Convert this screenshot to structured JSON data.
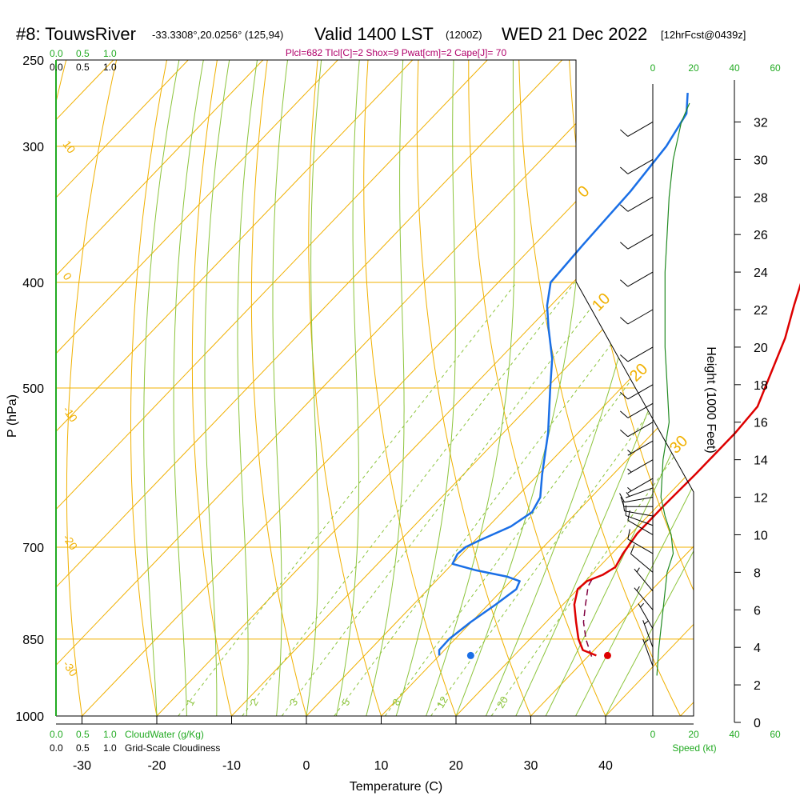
{
  "header": {
    "station": "#8: TouwsRiver",
    "coords": "-33.3308°,20.0256° (125,94)",
    "valid": "Valid 1400 LST",
    "utc": "(1200Z)",
    "date": "WED 21 Dec 2022",
    "forecast": "[12hrFcst@0439z]",
    "params": "Plcl=682 Tlcl[C]=2 Shox=9 Pwat[cm]=2 Cape[J]= 70"
  },
  "labels": {
    "cloudwater_scale": [
      "0.0",
      "0.5",
      "1.0"
    ],
    "cloudiness_scale": [
      "0.0",
      "0.5",
      "1.0"
    ],
    "cloudwater_label": "CloudWater (g/Kg)",
    "cloudiness_label": "Grid-Scale Cloudiness",
    "speed_label": "Speed (kt)",
    "speed_ticks_top": [
      "0",
      "20",
      "40",
      "60"
    ],
    "speed_ticks_bottom": [
      "0",
      "20",
      "40",
      "60"
    ]
  },
  "chart_data": {
    "type": "skew-t",
    "xlabel": "Temperature (C)",
    "ylabel": "P (hPa)",
    "y2label": "Height (1000 Feet)",
    "x_ticks": [
      -30,
      -20,
      -10,
      0,
      10,
      20,
      30,
      40
    ],
    "p_ticks": [
      250,
      300,
      400,
      500,
      700,
      850,
      1000
    ],
    "height_ticks": [
      0,
      2,
      4,
      6,
      8,
      10,
      12,
      14,
      16,
      18,
      20,
      22,
      24,
      26,
      28,
      30,
      32
    ],
    "dry_adiabat_labels": [
      "-10",
      "0",
      "10",
      "20",
      "30"
    ],
    "isotherm_labels": [
      "10",
      "0",
      "-10",
      "-20",
      "-30"
    ],
    "mixing_ratio_labels": [
      "1",
      "2",
      "3",
      "5",
      "8",
      "12",
      "20"
    ],
    "temperature": [
      {
        "p": 880,
        "t": 31.0
      },
      {
        "p": 870,
        "t": 28.5
      },
      {
        "p": 850,
        "t": 26.5
      },
      {
        "p": 820,
        "t": 24.0
      },
      {
        "p": 790,
        "t": 21.5
      },
      {
        "p": 765,
        "t": 20.0
      },
      {
        "p": 752,
        "t": 20.2
      },
      {
        "p": 742,
        "t": 21.5
      },
      {
        "p": 730,
        "t": 22.2
      },
      {
        "p": 710,
        "t": 21.5
      },
      {
        "p": 680,
        "t": 20.8
      },
      {
        "p": 640,
        "t": 20.8
      },
      {
        "p": 600,
        "t": 21.0
      },
      {
        "p": 550,
        "t": 21.0
      },
      {
        "p": 520,
        "t": 20.6
      },
      {
        "p": 490,
        "t": 18.5
      },
      {
        "p": 450,
        "t": 15.5
      },
      {
        "p": 420,
        "t": 12.5
      },
      {
        "p": 400,
        "t": 10.5
      },
      {
        "p": 370,
        "t": 6.5
      },
      {
        "p": 340,
        "t": 2.5
      },
      {
        "p": 310,
        "t": -2.0
      },
      {
        "p": 290,
        "t": -5.5
      },
      {
        "p": 268,
        "t": -10.5
      }
    ],
    "dewpoint": [
      {
        "p": 880,
        "t": 10.0
      },
      {
        "p": 870,
        "t": 9.3
      },
      {
        "p": 850,
        "t": 9.2
      },
      {
        "p": 820,
        "t": 9.9
      },
      {
        "p": 790,
        "t": 11.0
      },
      {
        "p": 765,
        "t": 11.8
      },
      {
        "p": 752,
        "t": 11.2
      },
      {
        "p": 745,
        "t": 9.0
      },
      {
        "p": 735,
        "t": 4.0
      },
      {
        "p": 725,
        "t": 0.0
      },
      {
        "p": 710,
        "t": -0.6
      },
      {
        "p": 700,
        "t": -0.4
      },
      {
        "p": 690,
        "t": 0.6
      },
      {
        "p": 670,
        "t": 3.0
      },
      {
        "p": 650,
        "t": 4.0
      },
      {
        "p": 630,
        "t": 3.2
      },
      {
        "p": 600,
        "t": 0.5
      },
      {
        "p": 550,
        "t": -4.0
      },
      {
        "p": 500,
        "t": -9.5
      },
      {
        "p": 470,
        "t": -13.0
      },
      {
        "p": 440,
        "t": -17.5
      },
      {
        "p": 420,
        "t": -20.5
      },
      {
        "p": 400,
        "t": -23.0
      },
      {
        "p": 370,
        "t": -23.5
      },
      {
        "p": 330,
        "t": -24.0
      },
      {
        "p": 300,
        "t": -25.0
      },
      {
        "p": 280,
        "t": -26.5
      },
      {
        "p": 268,
        "t": -29.0
      }
    ],
    "parcel": [
      {
        "p": 882,
        "t": 30.5
      },
      {
        "p": 850,
        "t": 27.5
      },
      {
        "p": 820,
        "t": 25.0
      },
      {
        "p": 790,
        "t": 23.0
      },
      {
        "p": 760,
        "t": 21.0
      },
      {
        "p": 745,
        "t": 20.5
      }
    ],
    "surface_temperature": {
      "p": 880,
      "t": 32.5
    },
    "surface_dewpoint": {
      "p": 880,
      "t": 14.2
    },
    "cloud_water_profile": [
      {
        "p": 258,
        "v": 0.0
      },
      {
        "p": 1000,
        "v": 0.0
      }
    ],
    "wind_speed_profile_kt": [
      {
        "h": 2.5,
        "s": 2
      },
      {
        "h": 4,
        "s": 3
      },
      {
        "h": 6,
        "s": 5
      },
      {
        "h": 8,
        "s": 7
      },
      {
        "h": 9,
        "s": 10
      },
      {
        "h": 10,
        "s": 9
      },
      {
        "h": 11,
        "s": 6
      },
      {
        "h": 12,
        "s": 4
      },
      {
        "h": 14,
        "s": 5
      },
      {
        "h": 16,
        "s": 8
      },
      {
        "h": 18,
        "s": 7
      },
      {
        "h": 20,
        "s": 6
      },
      {
        "h": 22,
        "s": 6
      },
      {
        "h": 24,
        "s": 6
      },
      {
        "h": 26,
        "s": 7
      },
      {
        "h": 28,
        "s": 8
      },
      {
        "h": 30,
        "s": 10
      },
      {
        "h": 32,
        "s": 14
      },
      {
        "h": 33,
        "s": 18
      }
    ],
    "wind_barbs": [
      {
        "h": 3,
        "dir": 200,
        "spd": 5
      },
      {
        "h": 4,
        "dir": 200,
        "spd": 5
      },
      {
        "h": 5,
        "dir": 210,
        "spd": 5
      },
      {
        "h": 6,
        "dir": 220,
        "spd": 5
      },
      {
        "h": 7,
        "dir": 220,
        "spd": 5
      },
      {
        "h": 8,
        "dir": 230,
        "spd": 10
      },
      {
        "h": 9,
        "dir": 240,
        "spd": 10
      },
      {
        "h": 10,
        "dir": 240,
        "spd": 10
      },
      {
        "h": 10.5,
        "dir": 250,
        "spd": 10
      },
      {
        "h": 11,
        "dir": 260,
        "spd": 10
      },
      {
        "h": 11.5,
        "dir": 270,
        "spd": 10
      },
      {
        "h": 12,
        "dir": 280,
        "spd": 10
      },
      {
        "h": 12.5,
        "dir": 290,
        "spd": 5
      },
      {
        "h": 13,
        "dir": 300,
        "spd": 5
      },
      {
        "h": 14,
        "dir": 300,
        "spd": 5
      },
      {
        "h": 15,
        "dir": 300,
        "spd": 5
      },
      {
        "h": 16,
        "dir": 300,
        "spd": 10
      },
      {
        "h": 17,
        "dir": 300,
        "spd": 10
      },
      {
        "h": 18,
        "dir": 300,
        "spd": 10
      },
      {
        "h": 20,
        "dir": 300,
        "spd": 10
      },
      {
        "h": 22,
        "dir": 300,
        "spd": 10
      },
      {
        "h": 24,
        "dir": 300,
        "spd": 10
      },
      {
        "h": 26,
        "dir": 300,
        "spd": 10
      },
      {
        "h": 28,
        "dir": 300,
        "spd": 10
      },
      {
        "h": 30,
        "dir": 300,
        "spd": 10
      },
      {
        "h": 32,
        "dir": 300,
        "spd": 10
      }
    ],
    "colors": {
      "temperature": "#dd0000",
      "dewpoint": "#1a6fe6",
      "parcel": "#800040",
      "isotherm": "#f0b000",
      "moist_adiabat": "#8cc43c",
      "mixing_ratio": "#8cc43c",
      "cloud": "#22aa22",
      "speed": "#228b22"
    }
  }
}
